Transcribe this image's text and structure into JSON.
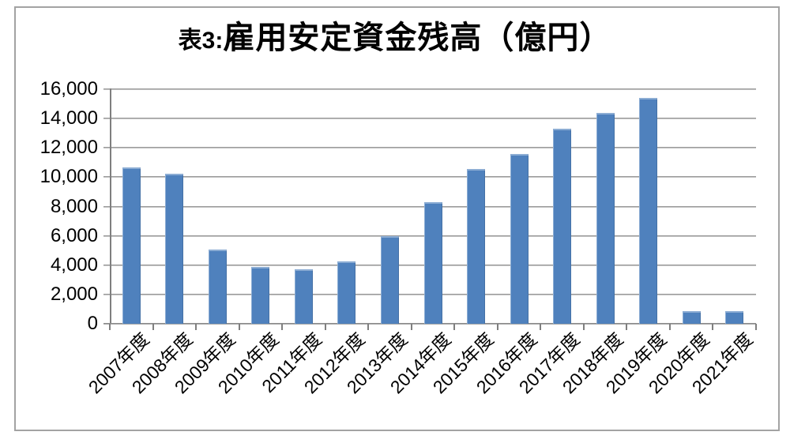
{
  "window": {
    "background": "#FFFFFF",
    "frame_border_color": "#A3A3A3"
  },
  "chart_data": {
    "type": "bar",
    "title": "表3:雇用安定資金残高（億円）",
    "title_prefix": "表3:",
    "title_main": "雇用安定資金残高（億円）",
    "categories": [
      "2007年度",
      "2008年度",
      "2009年度",
      "2010年度",
      "2011年度",
      "2012年度",
      "2013年度",
      "2014年度",
      "2015年度",
      "2016年度",
      "2017年度",
      "2018年度",
      "2019年度",
      "2020年度",
      "2021年度"
    ],
    "values": [
      10650,
      10250,
      5050,
      3900,
      3700,
      4250,
      6000,
      8300,
      10550,
      11600,
      13300,
      14400,
      15400,
      850,
      850
    ],
    "xlabel": "",
    "ylabel": "",
    "ylim": [
      0,
      16000
    ],
    "ytick_interval": 2000,
    "ytick_labels": [
      "0",
      "2,000",
      "4,000",
      "6,000",
      "8,000",
      "10,000",
      "12,000",
      "14,000",
      "16,000"
    ],
    "grid": true,
    "legend_position": "none",
    "bar_color": "#4F81BD",
    "gridline_color": "#8C8C8C",
    "axis_color": "#7F7F7F",
    "text_color": "#000000"
  }
}
